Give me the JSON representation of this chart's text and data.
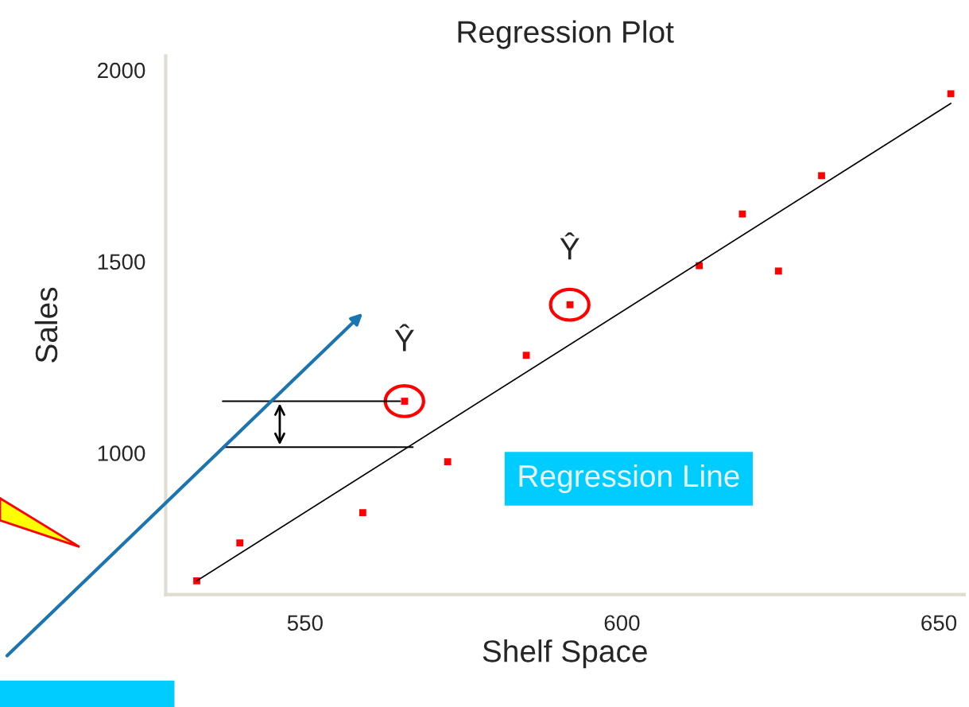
{
  "chart_data": {
    "type": "scatter",
    "title": "Regression Plot",
    "xlabel": "Shelf Space",
    "ylabel": "Sales",
    "xlim": [
      528,
      654
    ],
    "ylim": [
      630,
      2037
    ],
    "xticks": [
      550,
      600,
      650
    ],
    "yticks": [
      1000,
      1500,
      2000
    ],
    "grid": false,
    "marker": "square",
    "series": [
      {
        "color": "#ff0000",
        "x": [
          532.9,
          539.7,
          559.1,
          565.7,
          572.5,
          584.9,
          591.8,
          612.2,
          619.0,
          624.7,
          631.5,
          651.9
        ],
        "values": [
          666,
          765,
          844,
          1135,
          977,
          1255,
          1387,
          1489,
          1624,
          1475,
          1724,
          1938
        ]
      },
      {
        "type": "line",
        "marker": "none",
        "color": "#000000",
        "x": [
          532.9,
          651.9
        ],
        "values": [
          666,
          1913
        ]
      }
    ],
    "annotations": [
      "Ŷ",
      "Ŷ",
      "Regression Line"
    ]
  }
}
